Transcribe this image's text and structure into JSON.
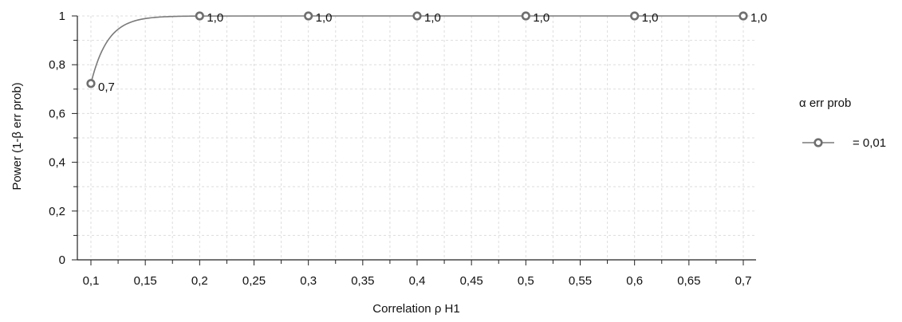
{
  "chart_data": {
    "type": "line",
    "xlabel": "Correlation ρ H1",
    "ylabel": "Power (1-β err prob)",
    "xlim": [
      0.1,
      0.7
    ],
    "ylim": [
      0,
      1
    ],
    "x_ticks": [
      "0,1",
      "0,15",
      "0,2",
      "0,25",
      "0,3",
      "0,35",
      "0,4",
      "0,45",
      "0,5",
      "0,55",
      "0,6",
      "0,65",
      "0,7"
    ],
    "y_ticks": [
      "0",
      "0,2",
      "0,4",
      "0,6",
      "0,8",
      "1"
    ],
    "grid": true,
    "legend_position": "right",
    "legend_title": "α err prob",
    "colors": {
      "series": "#7a7a7a",
      "grid": "#dddddd",
      "axis": "#222222"
    },
    "series": [
      {
        "name": " = 0,01",
        "x": [
          0.1,
          0.2,
          0.3,
          0.4,
          0.5,
          0.6,
          0.7
        ],
        "y": [
          0.723,
          1.0,
          1.0,
          1.0,
          1.0,
          1.0,
          1.0
        ],
        "labels": [
          "0,7",
          "1,0",
          "1,0",
          "1,0",
          "1,0",
          "1,0",
          "1,0"
        ]
      }
    ]
  }
}
